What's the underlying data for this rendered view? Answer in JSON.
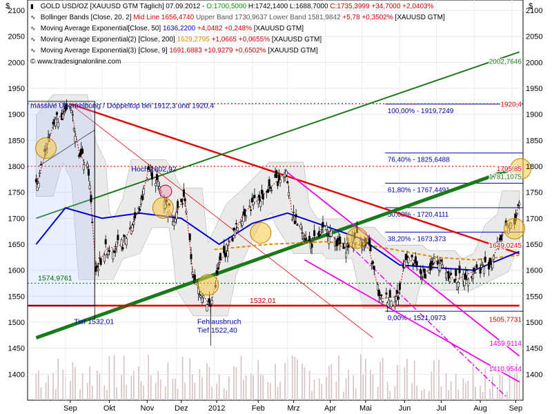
{
  "legend": {
    "symbol": "GOLD USD/OZ [XAUUSD GTM",
    "period": "Täglich] 07.09.2012 -",
    "open": "O:1700,5000",
    "high": "H:1742,1400",
    "low": "L:1688,7000",
    "close": "C:1735,3999",
    "change": "+34,7000 +2,0403%",
    "bb_name": "Bollinger Bands [Close, 20, 2]",
    "bb_mid": "Mid Line 1656,4740",
    "bb_upper": "Upper Band 1730,9637",
    "bb_lower": "Lower Band 1581,9842",
    "bb_change": "+5,78 +0,3502%",
    "bb_sym": "[XAUUSD GTM]",
    "ma50_name": "Moving Average Exponential[Close, 50]",
    "ma50_val": "1636,2200",
    "ma50_change": "+4,0482 +0,248%",
    "ma50_sym": "[XAUUSD GTM]",
    "ma200_name": "Moving Average Exponential(2) [Close, 200]",
    "ma200_val": "1629,2795",
    "ma200_change": "+1,0665 +0,0655%",
    "ma200_sym": "[XAUUSD GTM]",
    "ma9_name": "Moving Average Exponential(3) [Close, 9]",
    "ma9_val": "1691,6883",
    "ma9_change": "+10,9279 +0,6502%",
    "ma9_sym": "[XAUUSD GTM]",
    "copyright": "© www.tradesignalonline.com"
  },
  "colors": {
    "candle": "#000000",
    "resistance": "#e00000",
    "uptrend": "#1a7a1a",
    "channel": "#ee00ee",
    "ema50": "#0000cc",
    "ema200": "#e08a00",
    "ema9": "#cc0000",
    "bollinger": "#c8c8c8",
    "fib": "#0000aa",
    "highlight": "#f5c842"
  },
  "chart_data": {
    "type": "candlestick",
    "currency_label": "$",
    "ylim": [
      1350,
      2120
    ],
    "y_ticks": [
      1400,
      1450,
      1500,
      1550,
      1600,
      1650,
      1700,
      1750,
      1800,
      1850,
      1900,
      1950,
      2000,
      2050,
      2100
    ],
    "x_ticks": [
      "Sep",
      "Okt",
      "Nov",
      "Dez",
      "2012",
      "Feb",
      "Mrz",
      "Apr",
      "Mai",
      "Jun",
      "Jul",
      "Aug",
      "Sep"
    ],
    "price_path": [
      [
        "2011-08-08",
        1760
      ],
      [
        "2011-08-22",
        1880
      ],
      [
        "2011-09-05",
        1920
      ],
      [
        "2011-09-12",
        1830
      ],
      [
        "2011-09-20",
        1790
      ],
      [
        "2011-09-26",
        1600
      ],
      [
        "2011-10-04",
        1640
      ],
      [
        "2011-10-18",
        1650
      ],
      [
        "2011-11-01",
        1720
      ],
      [
        "2011-11-08",
        1795
      ],
      [
        "2011-11-15",
        1770
      ],
      [
        "2011-11-28",
        1700
      ],
      [
        "2011-12-08",
        1740
      ],
      [
        "2011-12-15",
        1580
      ],
      [
        "2011-12-29",
        1530
      ],
      [
        "2012-01-05",
        1610
      ],
      [
        "2012-01-25",
        1710
      ],
      [
        "2012-02-08",
        1740
      ],
      [
        "2012-02-29",
        1790
      ],
      [
        "2012-03-05",
        1705
      ],
      [
        "2012-03-20",
        1650
      ],
      [
        "2012-04-02",
        1680
      ],
      [
        "2012-04-16",
        1640
      ],
      [
        "2012-04-27",
        1665
      ],
      [
        "2012-05-07",
        1640
      ],
      [
        "2012-05-16",
        1545
      ],
      [
        "2012-05-31",
        1550
      ],
      [
        "2012-06-06",
        1630
      ],
      [
        "2012-06-20",
        1590
      ],
      [
        "2012-07-02",
        1620
      ],
      [
        "2012-07-16",
        1580
      ],
      [
        "2012-08-02",
        1600
      ],
      [
        "2012-08-15",
        1615
      ],
      [
        "2012-08-24",
        1670
      ],
      [
        "2012-09-03",
        1690
      ],
      [
        "2012-09-07",
        1735
      ]
    ],
    "ema50_path": [
      [
        "2011-08-08",
        1650
      ],
      [
        "2011-09-01",
        1720
      ],
      [
        "2011-10-01",
        1700
      ],
      [
        "2011-11-01",
        1710
      ],
      [
        "2011-12-05",
        1700
      ],
      [
        "2012-01-05",
        1650
      ],
      [
        "2012-02-01",
        1690
      ],
      [
        "2012-03-01",
        1710
      ],
      [
        "2012-04-01",
        1685
      ],
      [
        "2012-05-01",
        1660
      ],
      [
        "2012-06-01",
        1610
      ],
      [
        "2012-07-01",
        1605
      ],
      [
        "2012-08-01",
        1600
      ],
      [
        "2012-09-07",
        1636
      ]
    ],
    "ema200_path": [
      [
        "2012-01-01",
        1640
      ],
      [
        "2012-02-15",
        1650
      ],
      [
        "2012-04-01",
        1655
      ],
      [
        "2012-05-15",
        1645
      ],
      [
        "2012-07-01",
        1625
      ],
      [
        "2012-08-01",
        1620
      ],
      [
        "2012-09-07",
        1629
      ]
    ],
    "lines": [
      {
        "name": "resistance",
        "from": [
          "2011-09-05",
          1920
        ],
        "to": [
          "2012-09-07",
          1632
        ]
      },
      {
        "name": "uptrend-lower",
        "from": [
          "2011-08-08",
          1470
        ],
        "to": [
          "2012-09-07",
          1800
        ]
      },
      {
        "name": "uptrend-upper",
        "from": [
          "2011-08-08",
          1700
        ],
        "to": [
          "2012-09-07",
          2020
        ]
      },
      {
        "name": "channel-upper",
        "from": [
          "2012-02-29",
          1790
        ],
        "to": [
          "2012-09-07",
          1435
        ]
      },
      {
        "name": "channel-lower",
        "from": [
          "2012-03-15",
          1620
        ],
        "to": [
          "2012-09-07",
          1385
        ]
      },
      {
        "name": "support",
        "from": [
          "2011-08-01",
          1532
        ],
        "to": [
          "2012-09-07",
          1532
        ]
      }
    ],
    "fibonacci": [
      {
        "label": "100,00% - 1919,7249",
        "value": 1919.7249
      },
      {
        "label": "76,40% - 1825,6488",
        "value": 1825.6488
      },
      {
        "label": "61,80% - 1767,4491",
        "value": 1767.4491
      },
      {
        "label": "50,00% - 1720,4111",
        "value": 1720.4111
      },
      {
        "label": "38,20% - 1673,373",
        "value": 1673.373
      },
      {
        "label": "0,00% - 1521,0973",
        "value": 1521.0973
      }
    ],
    "price_tags": [
      "2002,7646",
      "1920,4",
      "1795,85",
      "1781,1075",
      "1649,0245",
      "1505,7731",
      "1459,9114",
      "1410,9544"
    ],
    "annotations": [
      "massive Übertreibung / Doppeltop bei 1912,3 und 1920,4",
      "Hoch 1802,92",
      "1574,9761",
      "1532,01",
      "Tief 1532,01",
      "Fehlausbruch",
      "Tief 1522,40"
    ]
  }
}
